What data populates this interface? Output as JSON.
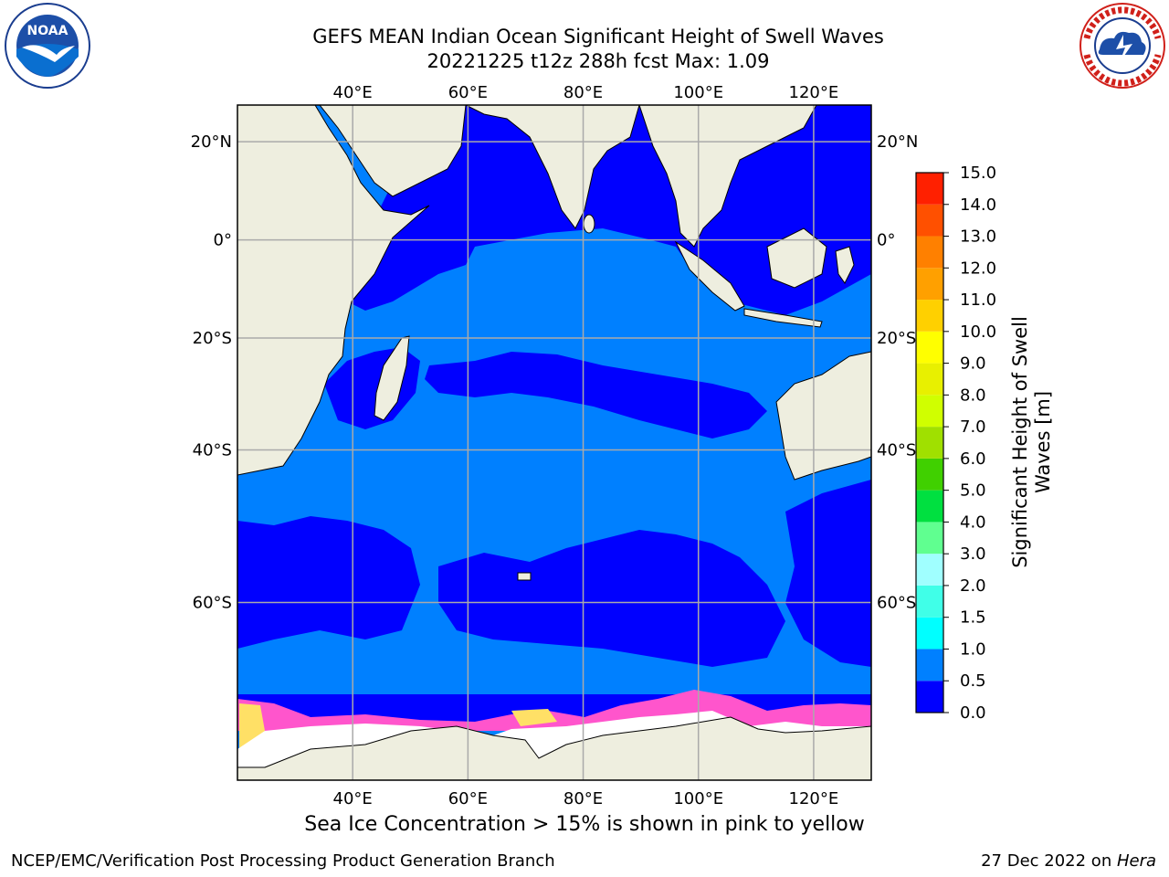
{
  "header": {
    "title_line1": "GEFS MEAN Indian Ocean Significant Height of Swell Waves",
    "title_line2": "20221225 t12z 288h fcst   Max: 1.09"
  },
  "logos": {
    "left": {
      "name": "noaa-logo",
      "text": "NOAA"
    },
    "right": {
      "name": "national-weather-service-logo"
    }
  },
  "map": {
    "lon_ticks": [
      "40°E",
      "60°E",
      "80°E",
      "100°E",
      "120°E"
    ],
    "lat_ticks": [
      "20°N",
      "0°",
      "20°S",
      "40°S",
      "60°S"
    ],
    "lon_range": [
      20,
      130
    ],
    "lat_range": [
      -74,
      27
    ],
    "colors": {
      "land": "#eeeedf",
      "ocean_low": "#0000ff",
      "ocean_mid": "#0080ff",
      "sea_ice_pink": "#ff55cc",
      "sea_ice_yellow": "#ffe066",
      "ice_shelf": "#ffffff"
    }
  },
  "colorbar": {
    "label_line1": "Significant Height of Swell",
    "label_line2": "Waves [m]",
    "ticks": [
      "0.0",
      "0.5",
      "1.0",
      "1.5",
      "2.0",
      "3.0",
      "4.0",
      "5.0",
      "6.0",
      "7.0",
      "8.0",
      "9.0",
      "10.0",
      "11.0",
      "12.0",
      "13.0",
      "14.0",
      "15.0"
    ],
    "colors": [
      "#0000ff",
      "#0080ff",
      "#00ffff",
      "#40ffe8",
      "#a0ffff",
      "#60ff90",
      "#00e040",
      "#40d000",
      "#a0e000",
      "#d0ff00",
      "#e8f000",
      "#ffff00",
      "#ffd000",
      "#ffa000",
      "#ff8000",
      "#ff5000",
      "#ff2000",
      "#ff0000"
    ]
  },
  "notes": {
    "ice": "Sea Ice Concentration > 15% is shown in pink to yellow"
  },
  "footer": {
    "left": "NCEP/EMC/Verification Post Processing Product Generation Branch",
    "date": "27 Dec 2022 on ",
    "host": "Hera"
  }
}
